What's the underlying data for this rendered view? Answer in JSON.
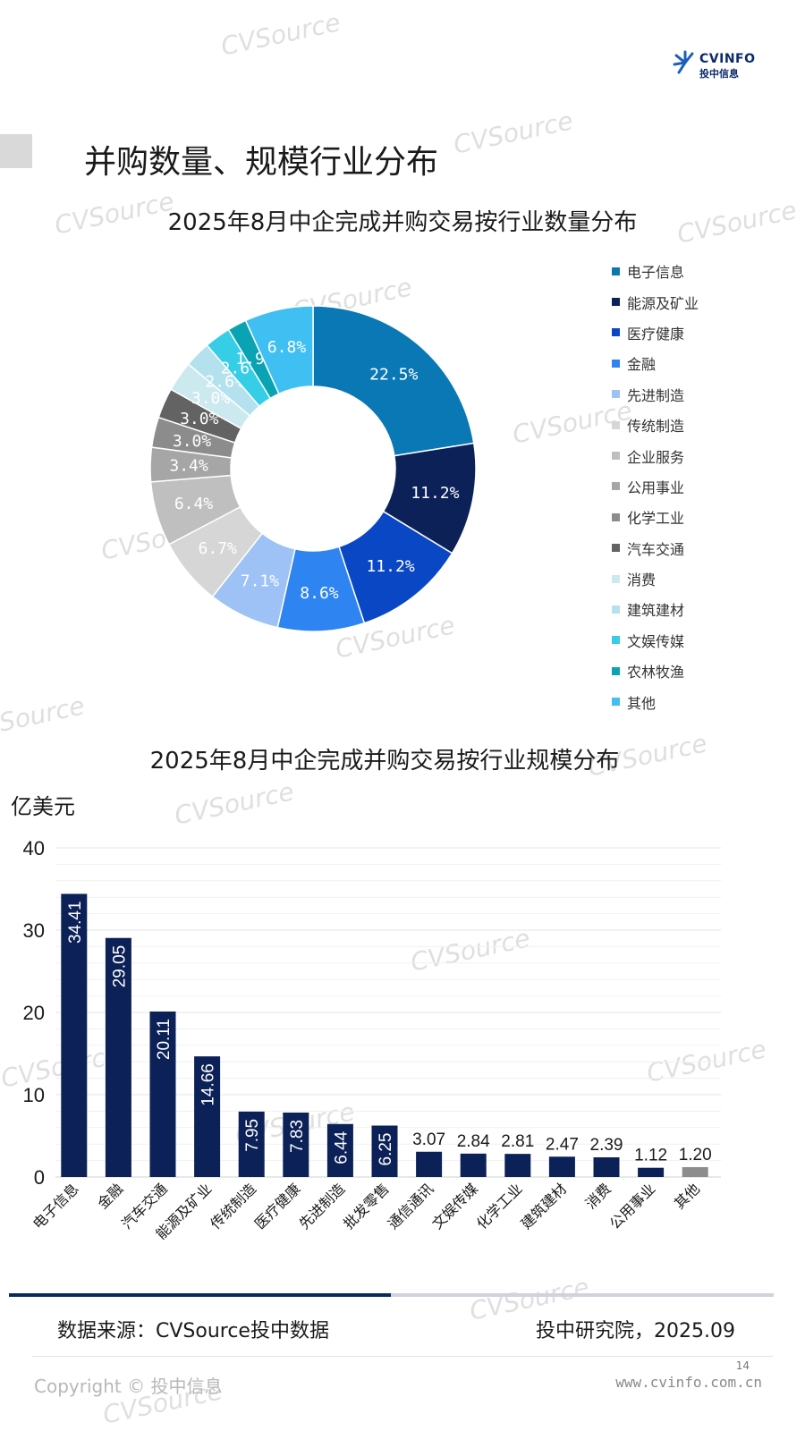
{
  "header": {
    "logo_text": "CVINFO",
    "logo_sub": "投中信息",
    "page_title": "并购数量、规模行业分布"
  },
  "watermark": "CVSource",
  "pie_chart": {
    "title": "2025年8月中企完成并购交易按行业数量分布"
  },
  "bar_chart": {
    "title": "2025年8月中企完成并购交易按行业规模分布",
    "y_unit": "亿美元"
  },
  "chart_data": [
    {
      "type": "pie",
      "title": "2025年8月中企完成并购交易按行业数量分布",
      "donut": true,
      "legend_position": "right",
      "categories": [
        "电子信息",
        "能源及矿业",
        "医疗健康",
        "金融",
        "先进制造",
        "传统制造",
        "企业服务",
        "公用事业",
        "化学工业",
        "汽车交通",
        "消费",
        "建筑建材",
        "文娱传媒",
        "农林牧渔",
        "其他"
      ],
      "values": [
        22.5,
        11.2,
        11.2,
        8.6,
        7.1,
        6.7,
        6.4,
        3.4,
        3.0,
        3.0,
        3.0,
        2.6,
        2.6,
        1.9,
        6.8
      ],
      "labels": [
        "22.5%",
        "11.2%",
        "11.2%",
        "8.6%",
        "7.1%",
        "6.7%",
        "6.4%",
        "3.4%",
        "3.0%",
        "3.0%",
        "3.0%",
        "2.6%",
        "2.6%",
        "1.9%",
        "6.8%"
      ],
      "colors": [
        "#0a78b4",
        "#0b2158",
        "#0a47c4",
        "#2e84f0",
        "#9ec2f6",
        "#d6d6d6",
        "#bfbfbf",
        "#a6a6a6",
        "#8c8c8c",
        "#636363",
        "#cce9f0",
        "#b3e1ee",
        "#36cde6",
        "#0aa3b4",
        "#3fbff2"
      ]
    },
    {
      "type": "bar",
      "title": "2025年8月中企完成并购交易按行业规模分布",
      "ylabel": "亿美元",
      "ylim": [
        0,
        40
      ],
      "yticks": [
        0,
        10,
        20,
        30,
        40
      ],
      "grid": true,
      "categories": [
        "电子信息",
        "金融",
        "汽车交通",
        "能源及矿业",
        "传统制造",
        "医疗健康",
        "先进制造",
        "批发零售",
        "通信通讯",
        "文娱传媒",
        "化学工业",
        "建筑建材",
        "消费",
        "公用事业",
        "其他"
      ],
      "values": [
        34.41,
        29.05,
        20.11,
        14.66,
        7.95,
        7.83,
        6.44,
        6.25,
        3.07,
        2.84,
        2.81,
        2.47,
        2.39,
        1.12,
        1.2
      ],
      "labels": [
        "34.41",
        "29.05",
        "20.11",
        "14.66",
        "7.95",
        "7.83",
        "6.44",
        "6.25",
        "3.07",
        "2.84",
        "2.81",
        "2.47",
        "2.39",
        "1.12",
        "1.20"
      ],
      "bar_color": "#0b2158",
      "last_bar_color": "#8c8c8c"
    }
  ],
  "footer": {
    "source": "数据来源：CVSource投中数据",
    "credit": "投中研究院，2025.09",
    "copyright": "Copyright © 投中信息",
    "page_number": "14",
    "site": "www.cvinfo.com.cn"
  }
}
